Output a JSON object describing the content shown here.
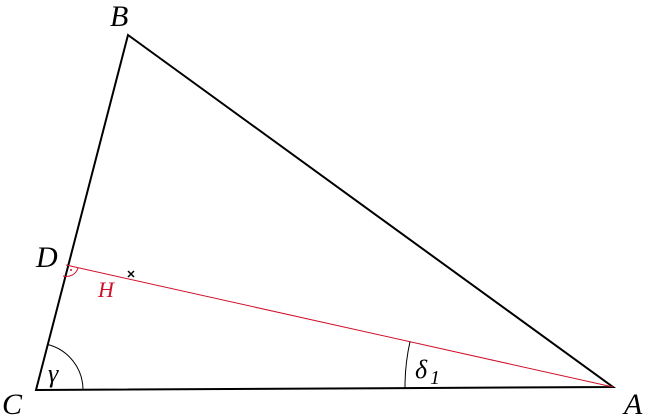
{
  "points": {
    "B": "B",
    "D": "D",
    "C": "C",
    "A": "A",
    "H": "H"
  },
  "angles": [
    {
      "symbol": "γ"
    },
    {
      "symbol": "δ",
      "subscript": "1"
    }
  ]
}
